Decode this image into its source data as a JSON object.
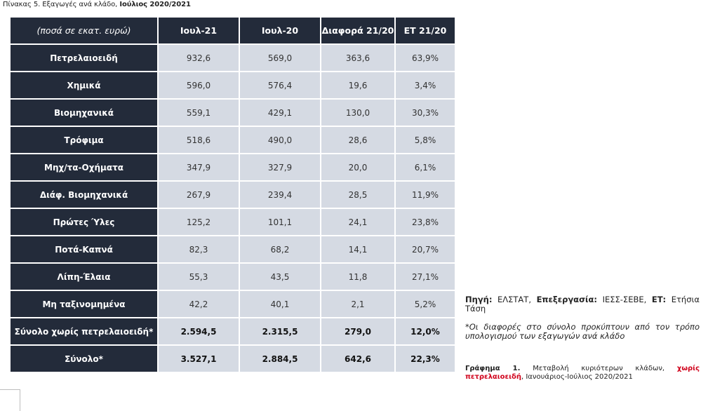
{
  "caption": {
    "prefix": "Πίνακας 5.",
    "text": " Εξαγωγές ανά κλάδο, ",
    "bold": "Ιούλιος 2020/2021"
  },
  "table": {
    "headers": [
      "(ποσά σε εκατ. ευρώ)",
      "Ιουλ-21",
      "Ιουλ-20",
      "Διαφορά 21/20",
      "ΕΤ 21/20"
    ],
    "rows": [
      {
        "label": "Πετρελαιοειδή",
        "values": [
          "932,6",
          "569,0",
          "363,6",
          "63,9%"
        ]
      },
      {
        "label": "Χημικά",
        "values": [
          "596,0",
          "576,4",
          "19,6",
          "3,4%"
        ]
      },
      {
        "label": "Βιομηχανικά",
        "values": [
          "559,1",
          "429,1",
          "130,0",
          "30,3%"
        ]
      },
      {
        "label": "Τρόφιμα",
        "values": [
          "518,6",
          "490,0",
          "28,6",
          "5,8%"
        ]
      },
      {
        "label": "Μηχ/τα-Οχήματα",
        "values": [
          "347,9",
          "327,9",
          "20,0",
          "6,1%"
        ]
      },
      {
        "label": "Διάφ. Βιομηχανικά",
        "values": [
          "267,9",
          "239,4",
          "28,5",
          "11,9%"
        ]
      },
      {
        "label": "Πρώτες Ύλες",
        "values": [
          "125,2",
          "101,1",
          "24,1",
          "23,8%"
        ]
      },
      {
        "label": "Ποτά-Καπνά",
        "values": [
          "82,3",
          "68,2",
          "14,1",
          "20,7%"
        ]
      },
      {
        "label": "Λίπη-Έλαια",
        "values": [
          "55,3",
          "43,5",
          "11,8",
          "27,1%"
        ]
      },
      {
        "label": "Μη ταξινομημένα",
        "values": [
          "42,2",
          "40,1",
          "2,1",
          "5,2%"
        ]
      }
    ],
    "totals": [
      {
        "label": "Σύνολο χωρίς πετρελαιοειδή*",
        "values": [
          "2.594,5",
          "2.315,5",
          "279,0",
          "12,0%"
        ]
      },
      {
        "label": "Σύνολο*",
        "values": [
          "3.527,1",
          "2.884,5",
          "642,6",
          "22,3%"
        ]
      }
    ]
  },
  "source": {
    "source_label": "Πηγή:",
    "source_value": " ΕΛΣΤΑΤ, ",
    "processing_label": "Επεξεργασία:",
    "processing_value": " ΙΕΣΣ-ΣΕΒΕ, ",
    "et_label": "ΕΤ:",
    "et_value": " Ετήσια Τάση"
  },
  "footnote": "*Οι διαφορές στο σύνολο προκύπτουν από τον τρόπο υπολογισμού των εξαγωγών ανά κλάδο",
  "chart_caption": {
    "prefix": "Γράφημα 1.",
    "text": " Μεταβολή κυριότερων κλάδων, ",
    "highlight": "χωρίς πετρελαιοειδή",
    "suffix": ", Ιανουάριος-Ιούλιος 2020/2021",
    "highlight_color": "#d0021b"
  },
  "colors": {
    "header_bg": "#232b3a",
    "cell_bg": "#d5dae3"
  }
}
